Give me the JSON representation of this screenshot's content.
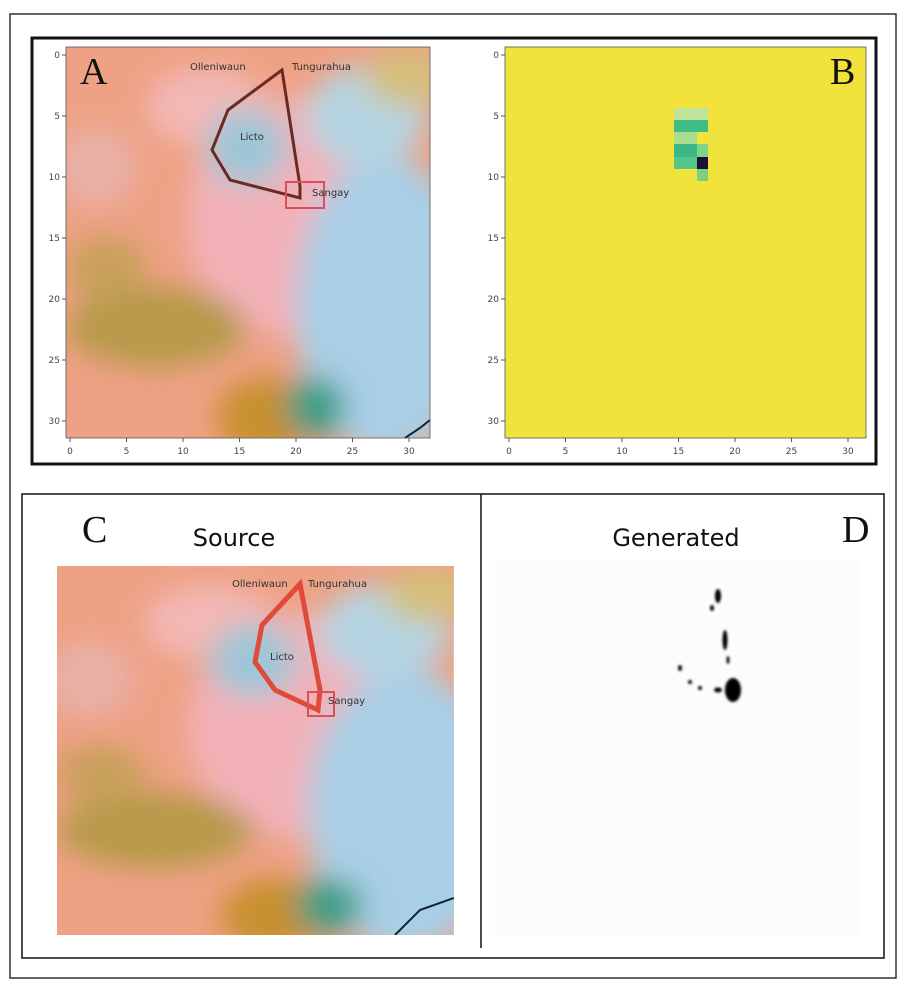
{
  "panel_a": {
    "label": "A",
    "places": [
      "Olleniwaun",
      "Tungurahua",
      "Licto",
      "Sangay"
    ],
    "xticks": [
      0,
      5,
      10,
      15,
      20,
      25,
      30
    ],
    "yticks": [
      0,
      5,
      10,
      15,
      20,
      25,
      30
    ]
  },
  "panel_b": {
    "label": "B",
    "xticks": [
      0,
      5,
      10,
      15,
      20,
      25,
      30
    ],
    "yticks": [
      0,
      5,
      10,
      15,
      20,
      25,
      30
    ]
  },
  "panel_c": {
    "label": "C",
    "title": "Source",
    "places": [
      "Olleniwaun",
      "Tungurahua",
      "Licto",
      "Sangay"
    ]
  },
  "panel_d": {
    "label": "D",
    "title": "Generated"
  }
}
